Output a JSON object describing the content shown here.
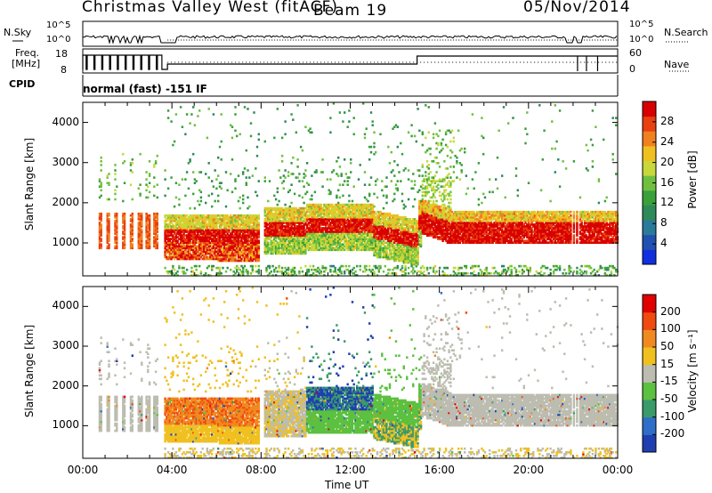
{
  "header": {
    "station": "Christmas Valley West (fitACF)",
    "beam": "Beam 19",
    "date": "05/Nov/2014"
  },
  "summary": {
    "nsky_label": "N.Sky",
    "nsky_top": "10^5",
    "nsky_bottom": "10^0",
    "nsearch_label": "N.Search",
    "nsearch_top": "10^5",
    "nsearch_bottom": "10^0",
    "freq_label_1": "Freq.",
    "freq_label_2": "[MHz]",
    "freq_top": "18",
    "freq_bottom": "8",
    "nave_label": "Nave",
    "nave_top": "60",
    "nave_bottom": "0",
    "cpid_label": "CPID",
    "cpid_text": "normal (fast) -151 IF"
  },
  "chart_data": [
    {
      "type": "heatmap",
      "name": "power-panel",
      "ylabel": "Slant Range [km]",
      "yticks": [
        "1000",
        "2000",
        "3000",
        "4000"
      ],
      "ylim": [
        180,
        4500
      ],
      "xlim": [
        0,
        24
      ],
      "colorbar": {
        "label": "Power [dB]",
        "ticks": [
          "4",
          "8",
          "12",
          "16",
          "20",
          "24",
          "28"
        ],
        "colors": [
          "#1030e0",
          "#2050b0",
          "#2a7a9a",
          "#2f8a5a",
          "#3aa03a",
          "#70c040",
          "#c8d83a",
          "#f0c020",
          "#f08020",
          "#e84010",
          "#d80000"
        ]
      }
    },
    {
      "type": "heatmap",
      "name": "velocity-panel",
      "ylabel": "Slant Range [km]",
      "yticks": [
        "1000",
        "2000",
        "3000",
        "4000"
      ],
      "ylim": [
        180,
        4500
      ],
      "xlim": [
        0,
        24
      ],
      "xlabel": "Time UT",
      "xticks": [
        "00:00",
        "04:00",
        "08:00",
        "12:00",
        "16:00",
        "20:00",
        "00:00"
      ],
      "colorbar": {
        "label": "Velocity [m s⁻¹]",
        "ticks": [
          "200",
          "100",
          "50",
          "15",
          "-15",
          "-50",
          "-100",
          "-200"
        ],
        "colors": [
          "#1f3fb0",
          "#2f6ec8",
          "#3a9a6a",
          "#5cc040",
          "#bcbcb0",
          "#f0c020",
          "#f08a20",
          "#f04a10",
          "#e00000"
        ]
      }
    }
  ]
}
